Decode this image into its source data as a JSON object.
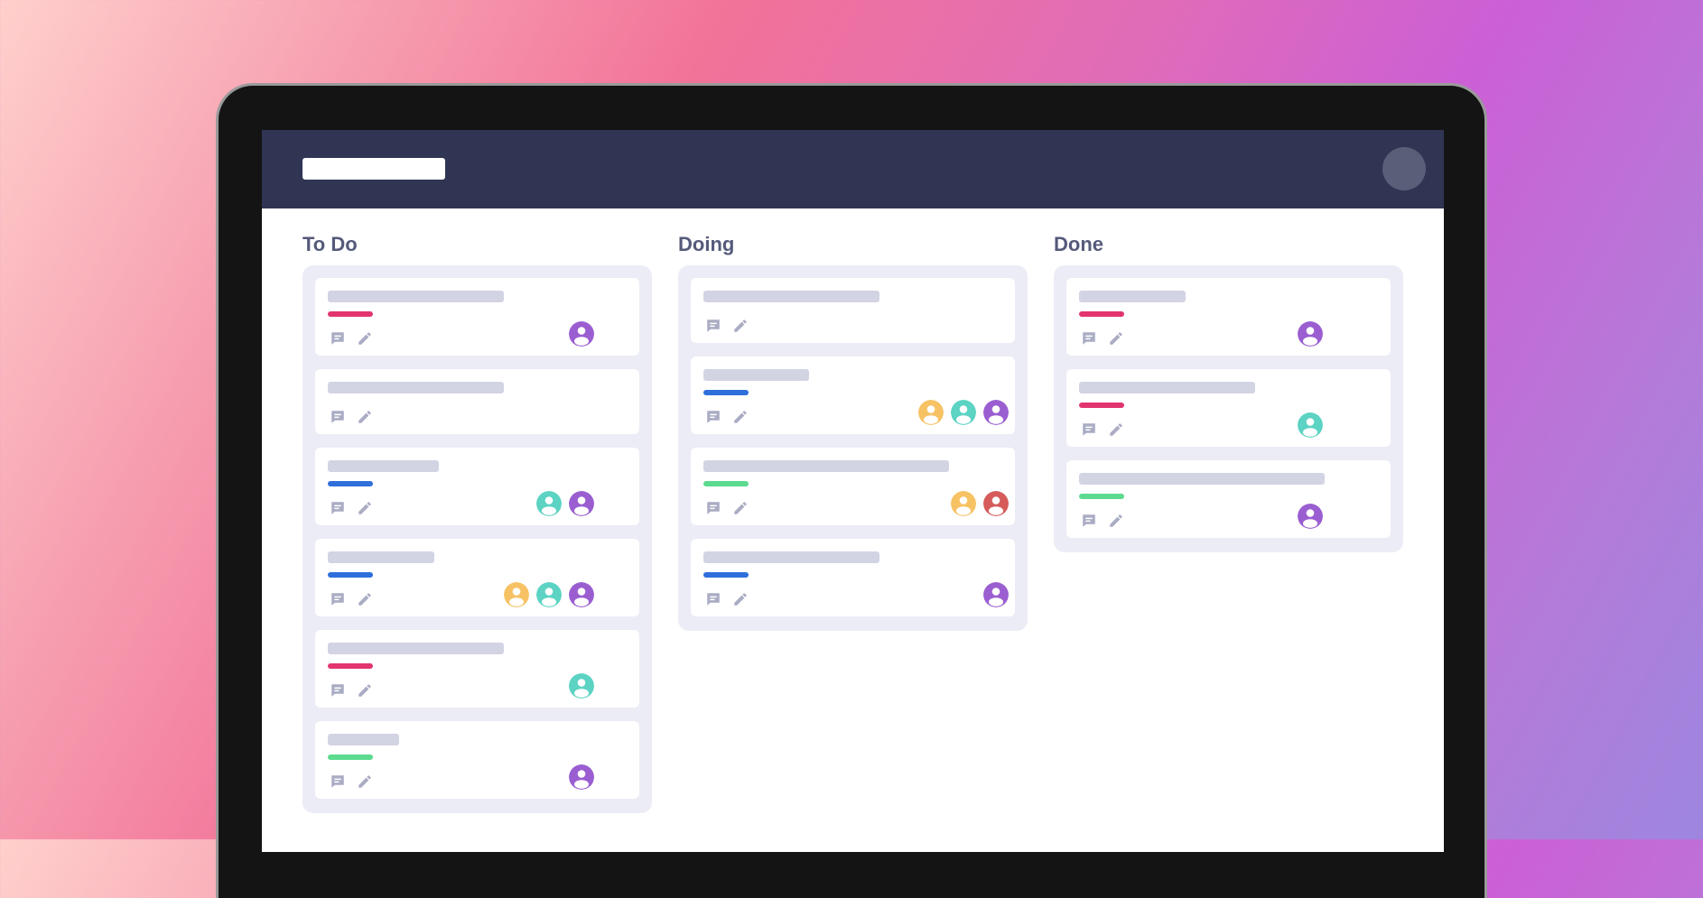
{
  "colors": {
    "frame": "#141414",
    "topbar": "#303553",
    "lane": "#ececf6",
    "placeholder": "#d2d4e4",
    "tag_pink": "#e2356f",
    "tag_blue": "#2f6fdc",
    "tag_green": "#5cdb8e",
    "avatar_purple": "#9a5ed1",
    "avatar_teal": "#5cd3c3",
    "avatar_yellow": "#f7c264",
    "avatar_red": "#d65c5c"
  },
  "columns": [
    {
      "title": "To Do",
      "cards": [
        {
          "tag": "pink",
          "avatars": [
            "purple"
          ]
        },
        {
          "tag": null,
          "avatars": []
        },
        {
          "tag": "blue",
          "avatars": [
            "teal",
            "purple"
          ]
        },
        {
          "tag": "blue",
          "avatars": [
            "yellow",
            "teal",
            "purple"
          ]
        },
        {
          "tag": "pink",
          "avatars": [
            "teal"
          ]
        },
        {
          "tag": "green",
          "avatars": [
            "purple"
          ]
        }
      ]
    },
    {
      "title": "Doing",
      "cards": [
        {
          "tag": null,
          "avatars": []
        },
        {
          "tag": "blue",
          "avatars": [
            "yellow",
            "teal",
            "purple"
          ]
        },
        {
          "tag": "green",
          "avatars": [
            "yellow",
            "red"
          ]
        },
        {
          "tag": "blue",
          "avatars": [
            "purple"
          ]
        }
      ]
    },
    {
      "title": "Done",
      "cards": [
        {
          "tag": "pink",
          "avatars": [
            "purple"
          ]
        },
        {
          "tag": "pink",
          "avatars": [
            "teal"
          ]
        },
        {
          "tag": "green",
          "avatars": [
            "purple"
          ]
        }
      ]
    }
  ],
  "icons": {
    "comment": "comment-icon",
    "edit": "pencil-icon",
    "user": "user-avatar-icon"
  }
}
